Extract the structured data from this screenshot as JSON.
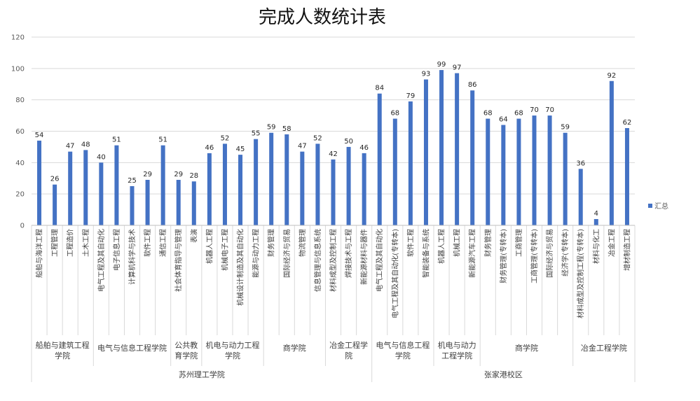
{
  "chart_data": {
    "type": "bar",
    "title": "完成人数统计表",
    "ylim": [
      0,
      120
    ],
    "yticks": [
      0,
      20,
      40,
      60,
      80,
      100,
      120
    ],
    "grid": true,
    "legend_position": "right",
    "color": "#4472C4",
    "series": [
      {
        "name": "汇总",
        "values": [
          54,
          26,
          47,
          48,
          40,
          51,
          25,
          29,
          51,
          29,
          28,
          46,
          52,
          45,
          55,
          59,
          58,
          47,
          52,
          42,
          50,
          46,
          84,
          68,
          79,
          93,
          99,
          97,
          86,
          68,
          64,
          68,
          70,
          70,
          59,
          36,
          4,
          92,
          62
        ]
      }
    ],
    "categories": [
      "船舶与海洋工程",
      "工程管理",
      "工程造价",
      "土木工程",
      "电气工程及其自动化",
      "电子信息工程",
      "计算机科学与技术",
      "软件工程",
      "通信工程",
      "社会体育指导与管理",
      "表演",
      "机器人工程",
      "机械电子工程",
      "机械设计制造及其自动化",
      "能源与动力工程",
      "财务管理",
      "国际经济与贸易",
      "物流管理",
      "信息管理与信息系统",
      "材料成型及控制工程",
      "焊接技术与工程",
      "新能源材料与器件",
      "电气工程及其自动化",
      "电气工程及其自动化(专转本)",
      "软件工程",
      "智能装备与系统",
      "机器人工程",
      "机械工程",
      "新能源汽车工程",
      "财务管理",
      "财务管理(专转本)",
      "工商管理",
      "工商管理(专转本)",
      "国际经济与贸易",
      "经济学(专转本)",
      "材料成型及控制工程(专转本)",
      "材料与化工",
      "冶金工程",
      "增材制造工程"
    ],
    "groups": [
      {
        "label": "船舶与建筑工程学院",
        "count": 4
      },
      {
        "label": "电气与信息工程学院",
        "count": 5
      },
      {
        "label": "公共教育学院",
        "count": 2
      },
      {
        "label": "机电与动力工程学院",
        "count": 4
      },
      {
        "label": "商学院",
        "count": 4
      },
      {
        "label": "冶金工程学院",
        "count": 3
      },
      {
        "label": "电气与信息工程学院",
        "count": 4
      },
      {
        "label": "机电与动力工程学院",
        "count": 3
      },
      {
        "label": "商学院",
        "count": 6
      },
      {
        "label": "冶金工程学院",
        "count": 4
      }
    ],
    "campuses": [
      {
        "label": "苏州理工学院",
        "count": 22
      },
      {
        "label": "张家港校区",
        "count": 17
      }
    ]
  }
}
